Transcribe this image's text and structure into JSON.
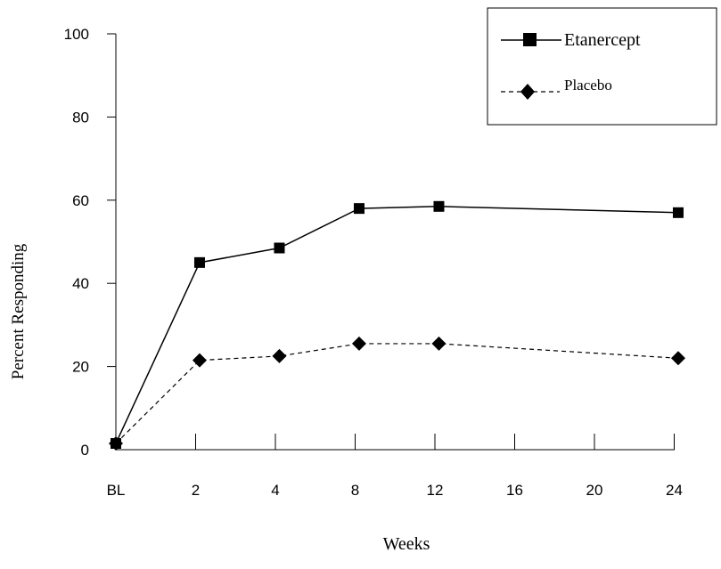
{
  "chart_data": {
    "type": "line",
    "xlabel": "Weeks",
    "ylabel": "Percent Responding",
    "categories": [
      "BL",
      "2",
      "4",
      "8",
      "12",
      "16",
      "20",
      "24"
    ],
    "x_positions": [
      0,
      1,
      2,
      3,
      4,
      5,
      6,
      7
    ],
    "ylim": [
      0,
      100
    ],
    "yticks": [
      0,
      20,
      40,
      60,
      80,
      100
    ],
    "legend_position": "top-right",
    "grid": false,
    "series": [
      {
        "name": "Etanercept",
        "marker": "square",
        "line_style": "solid",
        "color": "#000000",
        "x": [
          0,
          1.05,
          2.05,
          3.05,
          4.05,
          7.05
        ],
        "values": [
          1.5,
          45,
          48.5,
          58,
          58.5,
          57
        ]
      },
      {
        "name": "Placebo",
        "marker": "diamond",
        "line_style": "dashed",
        "color": "#000000",
        "x": [
          0,
          1.05,
          2.05,
          3.05,
          4.05,
          7.05
        ],
        "values": [
          1.5,
          21.5,
          22.5,
          25.5,
          25.5,
          22
        ]
      }
    ]
  }
}
